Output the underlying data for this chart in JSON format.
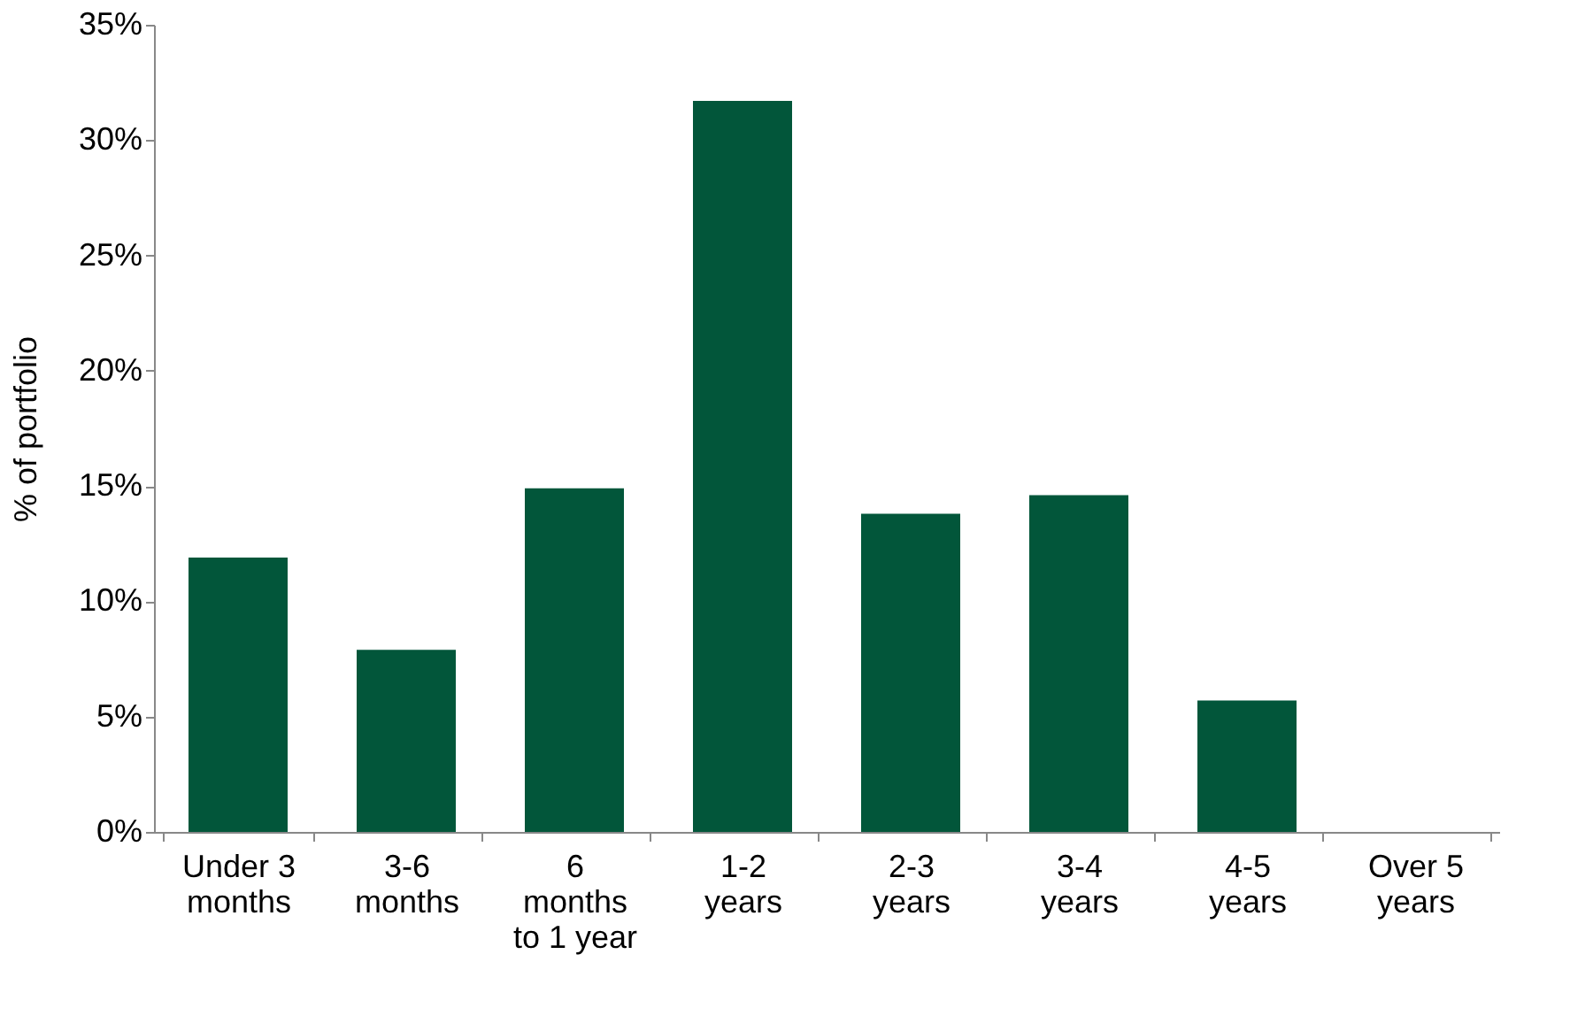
{
  "chart_data": {
    "type": "bar",
    "ylabel": "% of portfolio",
    "categories": [
      "Under 3\nmonths",
      "3-6\nmonths",
      "6\nmonths\nto 1 year",
      "1-2\nyears",
      "2-3\nyears",
      "3-4\nyears",
      "4-5\nyears",
      "Over 5\nyears"
    ],
    "values": [
      11.9,
      7.9,
      14.9,
      31.7,
      13.8,
      14.6,
      5.7,
      0
    ],
    "color": "#02563a",
    "ylim": [
      0,
      35
    ],
    "yticks": [
      {
        "value": 0,
        "label": "0%"
      },
      {
        "value": 5,
        "label": "5%"
      },
      {
        "value": 10,
        "label": "10%"
      },
      {
        "value": 15,
        "label": "15%"
      },
      {
        "value": 20,
        "label": "20%"
      },
      {
        "value": 25,
        "label": "25%"
      },
      {
        "value": 30,
        "label": "30%"
      },
      {
        "value": 35,
        "label": "35%"
      }
    ],
    "grid": false
  }
}
